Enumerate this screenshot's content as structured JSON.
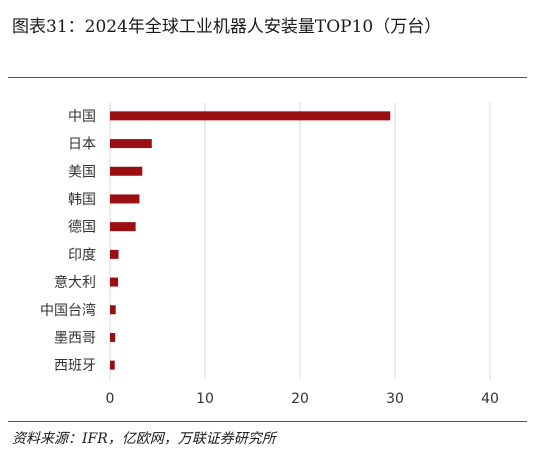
{
  "title": "图表31：2024年全球工业机器人安装量TOP10（万台）",
  "source": "资料来源：IFR，亿欧网，万联证券研究所",
  "colors": {
    "bar": "#9b0f12",
    "grid": "#d9d9d9",
    "rule": "#555555"
  },
  "chart_data": {
    "type": "bar",
    "orientation": "horizontal",
    "title": "图表31：2024年全球工业机器人安装量TOP10（万台）",
    "categories": [
      "中国",
      "日本",
      "美国",
      "韩国",
      "德国",
      "印度",
      "意大利",
      "中国台湾",
      "墨西哥",
      "西班牙"
    ],
    "series": [
      {
        "values": [
          29.5,
          4.4,
          3.4,
          3.1,
          2.7,
          0.9,
          0.85,
          0.6,
          0.55,
          0.5
        ]
      }
    ],
    "xlim": [
      0,
      40
    ],
    "xticks": [
      0,
      10,
      20,
      30,
      40
    ],
    "grid": "vertical",
    "legend": "none"
  }
}
